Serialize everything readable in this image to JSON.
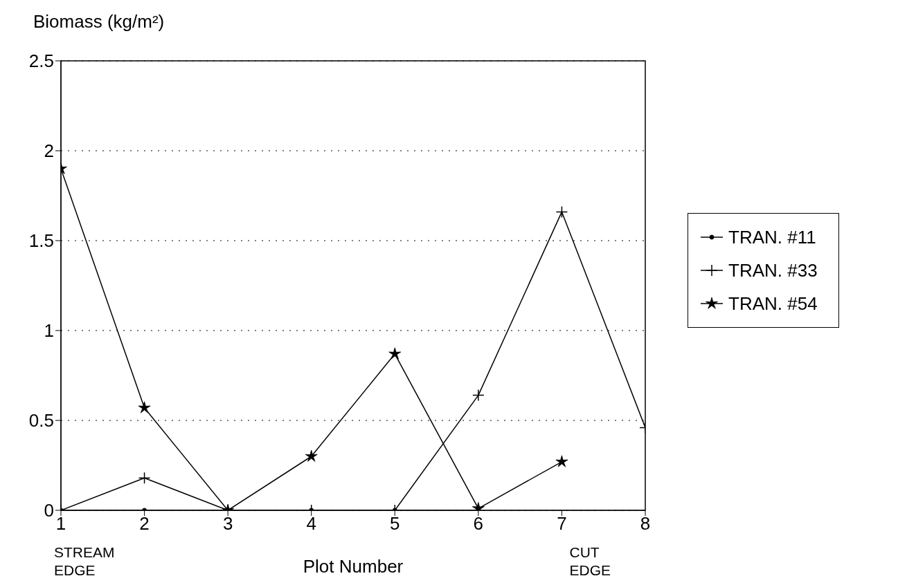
{
  "chart_data": {
    "type": "line",
    "xlabel": "Plot Number",
    "ylabel": "Biomass (kg/m²)",
    "x": [
      1,
      2,
      3,
      4,
      5,
      6,
      7,
      8
    ],
    "series": [
      {
        "name": "TRAN. #11",
        "color": "#000000",
        "marker": "circle",
        "values": [
          0,
          0,
          0,
          0,
          0,
          0,
          null,
          null
        ]
      },
      {
        "name": "TRAN. #33",
        "color": "#000000",
        "marker": "cross",
        "values": [
          0,
          0.18,
          0,
          0,
          0,
          0.64,
          1.66,
          0.46
        ]
      },
      {
        "name": "TRAN. #54",
        "color": "#000000",
        "marker": "star",
        "values": [
          1.9,
          0.57,
          0,
          0.3,
          0.87,
          0.01,
          0.27,
          null
        ]
      }
    ],
    "xlim": [
      1,
      8
    ],
    "ylim": [
      0,
      2.5
    ],
    "xticks": [
      1,
      2,
      3,
      4,
      5,
      6,
      7,
      8
    ],
    "yticks": [
      0,
      0.5,
      1,
      1.5,
      2,
      2.5
    ],
    "grid": "y",
    "legend": "right",
    "annotations": [
      "STREAM EDGE",
      "CUT EDGE"
    ]
  }
}
